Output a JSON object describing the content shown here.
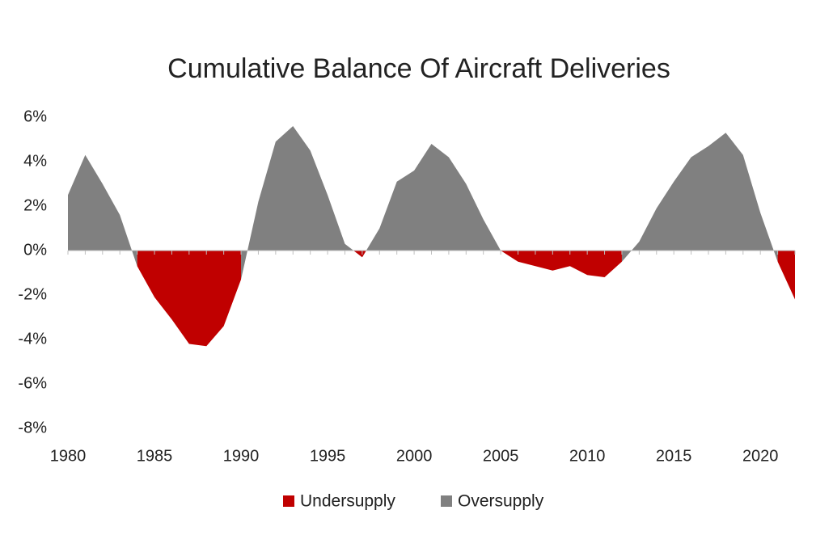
{
  "chart_data": {
    "type": "area",
    "title": "Cumulative Balance Of Aircraft Deliveries",
    "x": [
      1980,
      1981,
      1982,
      1983,
      1984,
      1985,
      1986,
      1987,
      1988,
      1989,
      1990,
      1991,
      1992,
      1993,
      1994,
      1995,
      1996,
      1997,
      1998,
      1999,
      2000,
      2001,
      2002,
      2003,
      2004,
      2005,
      2006,
      2007,
      2008,
      2009,
      2010,
      2011,
      2012,
      2013,
      2014,
      2015,
      2016,
      2017,
      2018,
      2019,
      2020,
      2021,
      2022
    ],
    "xlim": [
      1980,
      2022
    ],
    "xticks": [
      1980,
      1985,
      1990,
      1995,
      2000,
      2005,
      2010,
      2015,
      2020
    ],
    "ylim": [
      -8,
      6
    ],
    "yticks": [
      {
        "value": -8,
        "label": "-8%"
      },
      {
        "value": -6,
        "label": "-6%"
      },
      {
        "value": -4,
        "label": "-4%"
      },
      {
        "value": -2,
        "label": "-2%"
      },
      {
        "value": 0,
        "label": "0%"
      },
      {
        "value": 2,
        "label": "2%"
      },
      {
        "value": 4,
        "label": "4%"
      },
      {
        "value": 6,
        "label": "6%"
      }
    ],
    "legend": "bottom",
    "series": [
      {
        "name": "Undersupply",
        "color": "#c00000",
        "values": [
          null,
          null,
          null,
          null,
          -0.7,
          -2.1,
          -3.1,
          -4.2,
          -4.3,
          -3.4,
          -1.3,
          null,
          null,
          null,
          null,
          null,
          0.3,
          -0.3,
          1.0,
          null,
          null,
          null,
          null,
          null,
          null,
          0.0,
          -0.5,
          -0.7,
          -0.9,
          -0.7,
          -1.1,
          -1.2,
          -0.5,
          null,
          null,
          null,
          null,
          null,
          null,
          null,
          null,
          -0.5,
          -2.2
        ]
      },
      {
        "name": "Oversupply",
        "color": "#808080",
        "values": [
          2.5,
          4.3,
          3.0,
          1.6,
          -0.7,
          null,
          null,
          null,
          null,
          null,
          -1.3,
          2.2,
          4.9,
          5.6,
          4.5,
          2.5,
          0.3,
          -0.3,
          1.0,
          3.1,
          3.6,
          4.8,
          4.2,
          3.0,
          1.4,
          0.0,
          null,
          null,
          null,
          null,
          null,
          null,
          -0.5,
          0.4,
          1.9,
          3.1,
          4.2,
          4.7,
          5.3,
          4.3,
          1.7,
          -0.5,
          null
        ]
      }
    ]
  }
}
